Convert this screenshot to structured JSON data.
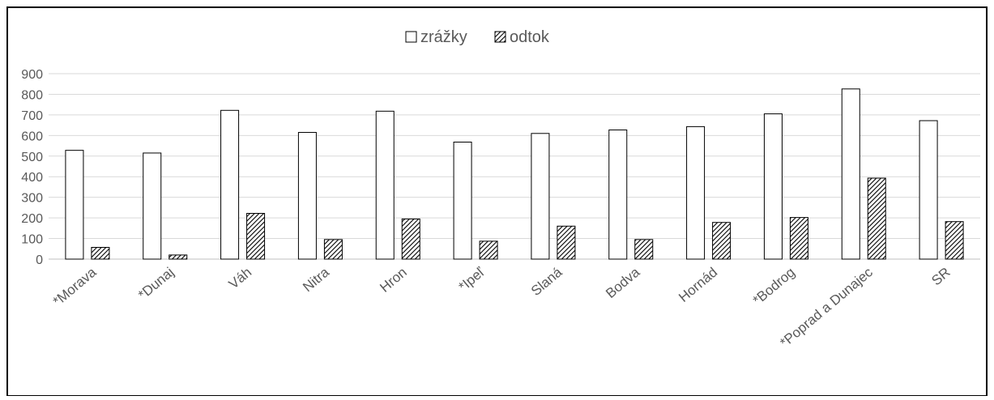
{
  "chart_data": {
    "type": "bar",
    "categories": [
      "*Morava",
      "*Dunaj",
      "Váh",
      "Nitra",
      "Hron",
      "*Ipeľ",
      "Slaná",
      "Bodva",
      "Hornád",
      "*Bodrog",
      "*Poprad a Dunajec",
      "SR"
    ],
    "series": [
      {
        "name": "zrážky",
        "values": [
          528,
          515,
          722,
          615,
          718,
          568,
          610,
          627,
          643,
          705,
          826,
          672
        ]
      },
      {
        "name": "odtok",
        "values": [
          57,
          20,
          222,
          95,
          195,
          87,
          160,
          95,
          178,
          202,
          393,
          182
        ]
      }
    ],
    "yticks": [
      "0",
      "100",
      "200",
      "300",
      "400",
      "500",
      "600",
      "700",
      "800",
      "900"
    ],
    "ylim": [
      0,
      900
    ],
    "grid": true,
    "legend_position": "top-center",
    "colors": {
      "zrážky_fill": "#ffffff",
      "odtok_pattern": "#000000",
      "bar_stroke": "#000000",
      "gridline": "#d9d9d9",
      "axis_text": "#595959"
    }
  }
}
